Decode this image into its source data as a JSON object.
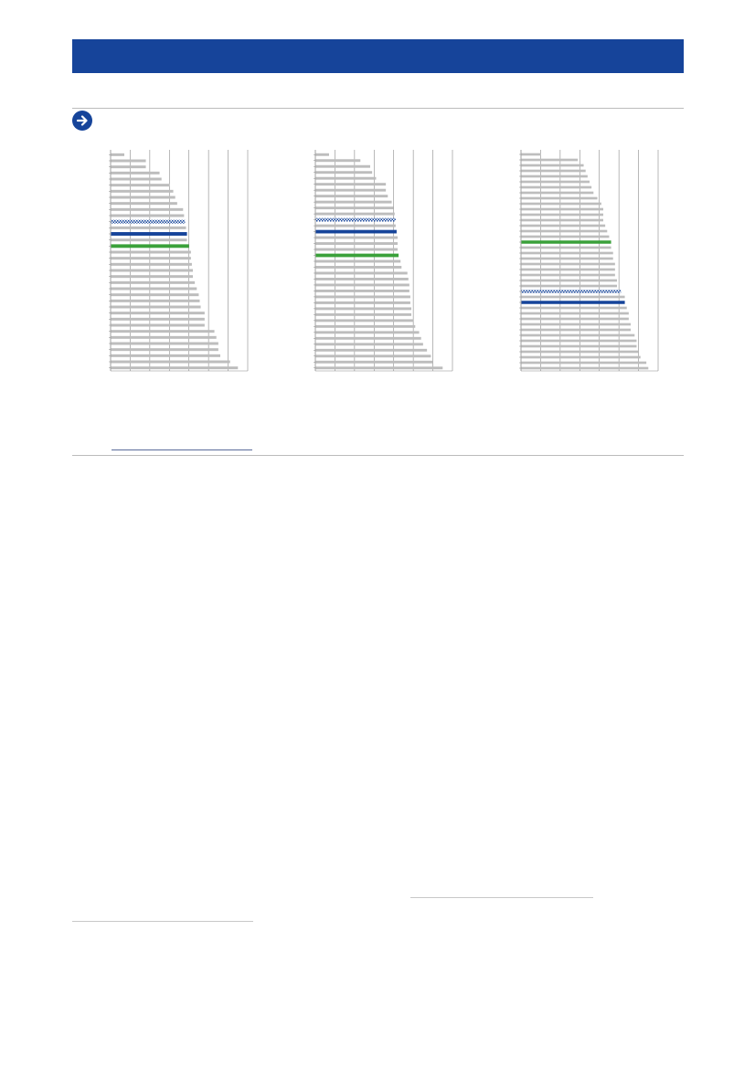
{
  "colors": {
    "brand": "#16449a",
    "bar": "#bdbdbd",
    "highlight_green": "#3aa13a",
    "highlight_blue": "#16449a",
    "highlight_hatched": "#16449a",
    "rule": "#bcbcbc"
  },
  "icons": {
    "section_marker": "arrow-right-circle-icon"
  },
  "chart_data": [
    {
      "type": "bar",
      "orientation": "horizontal",
      "grid": true,
      "xlim": [
        0,
        7
      ],
      "values": [
        0.7,
        1.8,
        1.8,
        2.5,
        2.6,
        3.0,
        3.2,
        3.3,
        3.4,
        3.7,
        3.75,
        3.8,
        3.85,
        3.9,
        3.9,
        4.0,
        4.1,
        4.1,
        4.15,
        4.2,
        4.2,
        4.3,
        4.4,
        4.5,
        4.55,
        4.6,
        4.8,
        4.8,
        4.8,
        5.3,
        5.4,
        5.5,
        5.5,
        5.6,
        6.1,
        6.5
      ],
      "highlights": [
        {
          "index": 11,
          "style": "hatched"
        },
        {
          "index": 13,
          "style": "blue"
        },
        {
          "index": 15,
          "style": "green"
        }
      ]
    },
    {
      "type": "bar",
      "orientation": "horizontal",
      "grid": true,
      "xlim": [
        0,
        7
      ],
      "values": [
        0.7,
        2.3,
        2.8,
        2.9,
        3.1,
        3.6,
        3.6,
        3.7,
        3.9,
        4.0,
        4.05,
        4.1,
        4.1,
        4.15,
        4.2,
        4.2,
        4.2,
        4.25,
        4.35,
        4.4,
        4.7,
        4.75,
        4.8,
        4.8,
        4.85,
        4.85,
        4.9,
        4.9,
        5.0,
        5.1,
        5.3,
        5.4,
        5.5,
        5.7,
        5.9,
        6.0,
        6.5
      ],
      "highlights": [
        {
          "index": 11,
          "style": "hatched"
        },
        {
          "index": 13,
          "style": "blue"
        },
        {
          "index": 17,
          "style": "green"
        }
      ]
    },
    {
      "type": "bar",
      "orientation": "horizontal",
      "grid": true,
      "xlim": [
        0,
        7
      ],
      "values": [
        1.0,
        2.9,
        3.2,
        3.3,
        3.4,
        3.5,
        3.6,
        3.7,
        3.9,
        4.1,
        4.2,
        4.2,
        4.2,
        4.3,
        4.4,
        4.5,
        4.6,
        4.6,
        4.7,
        4.7,
        4.8,
        4.8,
        4.8,
        4.9,
        4.9,
        5.1,
        5.3,
        5.3,
        5.4,
        5.5,
        5.5,
        5.6,
        5.6,
        5.8,
        5.9,
        5.9,
        6.0,
        6.1,
        6.4,
        6.5
      ],
      "highlights": [
        {
          "index": 16,
          "style": "green"
        },
        {
          "index": 25,
          "style": "hatched"
        },
        {
          "index": 27,
          "style": "blue"
        }
      ]
    }
  ]
}
